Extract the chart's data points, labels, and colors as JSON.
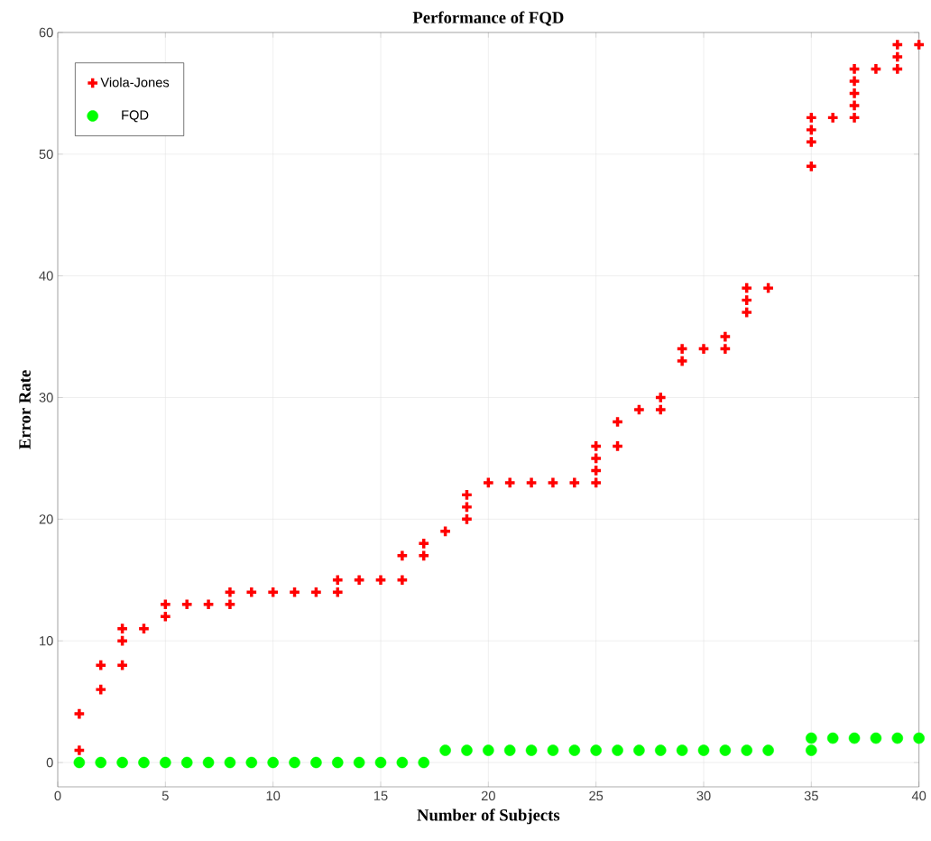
{
  "chart_data": {
    "type": "scatter",
    "title": "Performance of FQD",
    "xlabel": "Number of Subjects",
    "ylabel": "Error Rate",
    "xlim": [
      0,
      40
    ],
    "xticks": [
      0,
      5,
      10,
      15,
      20,
      25,
      30,
      35,
      40
    ],
    "ylim": [
      -2,
      60
    ],
    "yticks": [
      0,
      10,
      20,
      30,
      40,
      50,
      60
    ],
    "grid": true,
    "legend": "top left",
    "series": [
      {
        "name": "Viola-Jones",
        "color": "#ff0000",
        "marker": "cross",
        "x": [
          1,
          1,
          2,
          2,
          3,
          3,
          3,
          4,
          5,
          5,
          6,
          7,
          8,
          8,
          9,
          10,
          11,
          12,
          13,
          13,
          14,
          15,
          16,
          16,
          17,
          17,
          18,
          19,
          19,
          19,
          20,
          21,
          22,
          23,
          24,
          25,
          25,
          25,
          25,
          26,
          26,
          27,
          28,
          28,
          29,
          29,
          30,
          31,
          31,
          32,
          32,
          32,
          33,
          35,
          35,
          35,
          35,
          36,
          37,
          37,
          37,
          37,
          37,
          38,
          39,
          39,
          39,
          40
        ],
        "values": [
          4,
          1,
          8,
          6,
          11,
          10,
          8,
          11,
          13,
          12,
          13,
          13,
          14,
          13,
          14,
          14,
          14,
          14,
          15,
          14,
          15,
          15,
          17,
          15,
          18,
          17,
          19,
          22,
          21,
          20,
          23,
          23,
          23,
          23,
          23,
          26,
          25,
          24,
          23,
          28,
          26,
          29,
          30,
          29,
          34,
          33,
          34,
          35,
          34,
          39,
          38,
          37,
          39,
          53,
          52,
          51,
          49,
          53,
          57,
          56,
          55,
          54,
          53,
          57,
          59,
          58,
          57,
          59
        ]
      },
      {
        "name": "FQD",
        "color": "#00ff00",
        "marker": "circle",
        "x": [
          1,
          2,
          3,
          4,
          5,
          6,
          7,
          8,
          9,
          10,
          11,
          12,
          13,
          14,
          15,
          16,
          17,
          18,
          19,
          20,
          21,
          22,
          23,
          24,
          25,
          26,
          27,
          28,
          29,
          30,
          31,
          32,
          33,
          35,
          35,
          36,
          37,
          38,
          39,
          40
        ],
        "values": [
          0,
          0,
          0,
          0,
          0,
          0,
          0,
          0,
          0,
          0,
          0,
          0,
          0,
          0,
          0,
          0,
          0,
          1,
          1,
          1,
          1,
          1,
          1,
          1,
          1,
          1,
          1,
          1,
          1,
          1,
          1,
          1,
          1,
          2,
          1,
          2,
          2,
          2,
          2,
          2
        ]
      }
    ]
  }
}
